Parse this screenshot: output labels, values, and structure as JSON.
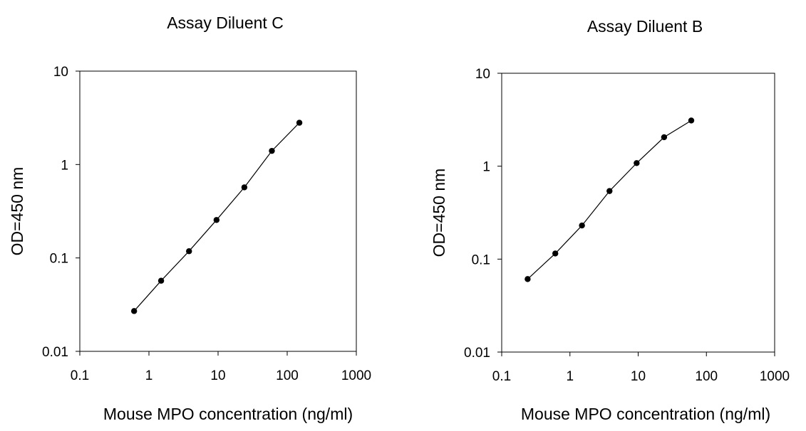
{
  "chart_data": [
    {
      "type": "line",
      "title": "Assay Diluent C",
      "xlabel": "Mouse MPO concentration (ng/ml)",
      "ylabel": "OD=450 nm",
      "xscale": "log",
      "yscale": "log",
      "xlim": [
        0.1,
        1000
      ],
      "ylim": [
        0.01,
        10
      ],
      "xticks": [
        "0.1",
        "1",
        "10",
        "100",
        "1000"
      ],
      "yticks": [
        "0.01",
        "0.1",
        "1",
        "10"
      ],
      "grid": false,
      "x": [
        0.61,
        1.5,
        3.8,
        9.5,
        24,
        60,
        150
      ],
      "y": [
        0.027,
        0.057,
        0.118,
        0.255,
        0.57,
        1.4,
        2.8
      ]
    },
    {
      "type": "line",
      "title": "Assay Diluent B",
      "xlabel": "Mouse MPO concentration (ng/ml)",
      "ylabel": "OD=450 nm",
      "xscale": "log",
      "yscale": "log",
      "xlim": [
        0.1,
        1000
      ],
      "ylim": [
        0.01,
        10
      ],
      "xticks": [
        "0.1",
        "1",
        "10",
        "100",
        "1000"
      ],
      "yticks": [
        "0.01",
        "0.1",
        "1",
        "10"
      ],
      "grid": false,
      "x": [
        0.24,
        0.61,
        1.5,
        3.8,
        9.5,
        24,
        60
      ],
      "y": [
        0.061,
        0.115,
        0.23,
        0.54,
        1.08,
        2.05,
        3.1
      ]
    }
  ]
}
